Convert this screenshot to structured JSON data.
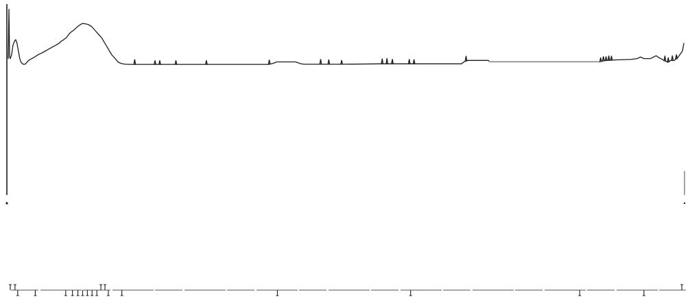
{
  "chart_data": {
    "type": "line",
    "title": "",
    "xlabel": "",
    "ylabel": "",
    "grid": false,
    "legend": "none",
    "colors": {
      "trace": "#1a1a1a",
      "flat_segment": "#9a9a9a",
      "background": "#ffffff"
    },
    "xlim": [
      0,
      1000
    ],
    "ylim": [
      0,
      100
    ],
    "series": [
      {
        "values": [
          [
            0,
            72
          ],
          [
            1,
            98
          ],
          [
            2,
            73
          ],
          [
            3,
            72
          ],
          [
            5,
            74
          ],
          [
            7,
            79
          ],
          [
            9,
            81
          ],
          [
            11,
            82
          ],
          [
            13,
            80
          ],
          [
            15,
            76
          ],
          [
            17,
            72
          ],
          [
            19,
            70
          ],
          [
            22,
            69
          ],
          [
            25,
            69
          ],
          [
            30,
            71
          ],
          [
            35,
            72
          ],
          [
            40,
            73
          ],
          [
            44,
            74
          ],
          [
            50,
            75
          ],
          [
            55,
            76
          ],
          [
            60,
            77
          ],
          [
            65,
            78
          ],
          [
            70,
            79
          ],
          [
            75,
            80
          ],
          [
            78,
            81
          ],
          [
            82,
            82
          ],
          [
            86,
            83
          ],
          [
            90,
            85
          ],
          [
            93,
            86
          ],
          [
            97,
            87
          ],
          [
            100,
            88
          ],
          [
            103,
            89
          ],
          [
            107,
            90
          ],
          [
            110,
            90.5
          ],
          [
            113,
            90.4
          ],
          [
            118,
            90
          ],
          [
            123,
            89
          ],
          [
            128,
            87
          ],
          [
            133,
            85
          ],
          [
            138,
            83
          ],
          [
            143,
            80
          ],
          [
            148,
            77
          ],
          [
            153,
            74
          ],
          [
            158,
            72
          ],
          [
            163,
            70
          ],
          [
            168,
            69.3
          ],
          [
            173,
            69
          ],
          [
            180,
            68.9
          ],
          [
            200,
            68.9
          ],
          [
            215,
            68.9
          ],
          [
            220,
            68.9
          ],
          [
            248,
            68.9
          ],
          [
            293,
            68.9
          ],
          [
            385,
            68.9
          ],
          [
            392,
            69.5
          ],
          [
            397,
            70.2
          ],
          [
            425,
            70.2
          ],
          [
            432,
            69.3
          ],
          [
            437,
            69
          ],
          [
            460,
            69
          ],
          [
            475,
            69
          ],
          [
            493,
            69
          ],
          [
            550,
            69.2
          ],
          [
            565,
            69.2
          ],
          [
            592,
            69.2
          ],
          [
            600,
            69.2
          ],
          [
            670,
            69.2
          ],
          [
            675,
            70.5
          ],
          [
            680,
            71
          ],
          [
            690,
            71
          ],
          [
            710,
            71
          ],
          [
            712,
            70.3
          ],
          [
            800,
            70.3
          ],
          [
            875,
            70.3
          ],
          [
            880,
            70.8
          ],
          [
            885,
            71
          ],
          [
            900,
            71.3
          ],
          [
            920,
            71.5
          ],
          [
            930,
            72
          ],
          [
            935,
            72.8
          ],
          [
            940,
            72
          ],
          [
            950,
            72
          ],
          [
            958,
            73.5
          ],
          [
            962,
            72.5
          ],
          [
            970,
            71
          ],
          [
            975,
            70
          ],
          [
            980,
            71
          ],
          [
            985,
            71
          ],
          [
            990,
            72.5
          ],
          [
            995,
            75
          ],
          [
            997,
            76
          ],
          [
            999,
            80
          ]
        ]
      }
    ],
    "peaks": [
      [
        187,
        2.5
      ],
      [
        217,
        2
      ],
      [
        224,
        2
      ],
      [
        248,
        2
      ],
      [
        293,
        2
      ],
      [
        386,
        2.2
      ],
      [
        462,
        2.5
      ],
      [
        474,
        2.3
      ],
      [
        493,
        2
      ],
      [
        553,
        2.6
      ],
      [
        560,
        2.8
      ],
      [
        568,
        2.4
      ],
      [
        593,
        2.3
      ],
      [
        600,
        2.2
      ],
      [
        677,
        2.5
      ],
      [
        876,
        2
      ],
      [
        880,
        2.2
      ],
      [
        884,
        2
      ],
      [
        888,
        2.3
      ],
      [
        892,
        2.1
      ],
      [
        971,
        2.5
      ],
      [
        976,
        2.2
      ],
      [
        982,
        2.4
      ],
      [
        988,
        2.1
      ]
    ],
    "event_marks": [
      {
        "x": 3,
        "dir": "up"
      },
      {
        "x": 10,
        "dir": "up"
      },
      {
        "x": 14,
        "dir": "down"
      },
      {
        "x": 40,
        "dir": "down"
      },
      {
        "x": 85,
        "dir": "down"
      },
      {
        "x": 95,
        "dir": "down"
      },
      {
        "x": 103,
        "dir": "down"
      },
      {
        "x": 110,
        "dir": "down"
      },
      {
        "x": 117,
        "dir": "down"
      },
      {
        "x": 124,
        "dir": "down"
      },
      {
        "x": 131,
        "dir": "down"
      },
      {
        "x": 137,
        "dir": "up"
      },
      {
        "x": 143,
        "dir": "up"
      },
      {
        "x": 148,
        "dir": "down"
      },
      {
        "x": 168,
        "dir": "down"
      },
      {
        "x": 398,
        "dir": "down"
      },
      {
        "x": 595,
        "dir": "down"
      },
      {
        "x": 845,
        "dir": "down"
      },
      {
        "x": 940,
        "dir": "down"
      },
      {
        "x": 996,
        "dir": "up"
      }
    ]
  }
}
